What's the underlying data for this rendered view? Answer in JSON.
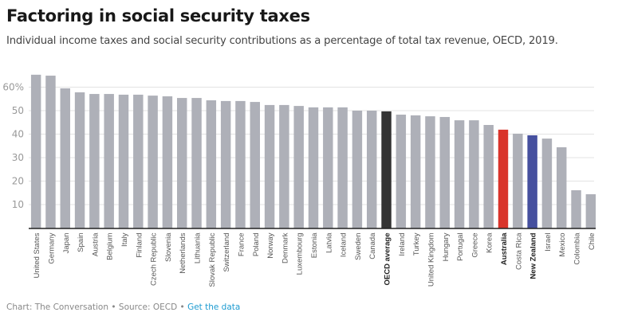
{
  "title": "Factoring in social security taxes",
  "subtitle": "Individual income taxes and social security contributions as a percentage of total tax revenue, OECD, 2019.",
  "footer": {
    "credit": "Chart: The Conversation",
    "separator": "•",
    "source": "Source: OECD",
    "link": "Get the data"
  },
  "colors": {
    "default": "#aeb0b8",
    "oecd": "#333333",
    "australia": "#d9342b",
    "new_zealand": "#46509f"
  },
  "chart_data": {
    "type": "bar",
    "title": "Factoring in social security taxes",
    "xlabel": "",
    "ylabel": "",
    "ylim": [
      0,
      66
    ],
    "yticks": [
      10,
      20,
      30,
      40,
      50,
      60
    ],
    "ytick_labels": [
      "10",
      "20",
      "30",
      "40",
      "50",
      "60%"
    ],
    "grid": true,
    "categories": [
      "United States",
      "Germany",
      "Japan",
      "Spain",
      "Austria",
      "Belgium",
      "Italy",
      "Finland",
      "Czech Republic",
      "Slovenia",
      "Netherlands",
      "Lithuania",
      "Slovak Republic",
      "Switzerland",
      "France",
      "Poland",
      "Norway",
      "Denmark",
      "Luxembourg",
      "Estonia",
      "Latvia",
      "Iceland",
      "Sweden",
      "Canada",
      "OECD average",
      "Ireland",
      "Turkey",
      "United Kingdom",
      "Hungary",
      "Portugal",
      "Greece",
      "Korea",
      "Australia",
      "Costa Rica",
      "New Zealand",
      "Israel",
      "Mexico",
      "Colombia",
      "Chile"
    ],
    "values": [
      65.3,
      64.9,
      59.5,
      57.8,
      57.1,
      57.1,
      56.8,
      56.8,
      56.4,
      56.1,
      55.4,
      55.4,
      54.4,
      54.1,
      54.1,
      53.7,
      52.4,
      52.4,
      52.0,
      51.4,
      51.4,
      51.4,
      50.0,
      50.0,
      49.7,
      48.3,
      48.0,
      47.6,
      47.3,
      45.9,
      45.9,
      43.9,
      41.9,
      40.2,
      39.5,
      38.1,
      34.4,
      16.1,
      14.4
    ],
    "highlights": {
      "OECD average": "oecd",
      "Australia": "australia",
      "New Zealand": "new_zealand"
    }
  }
}
